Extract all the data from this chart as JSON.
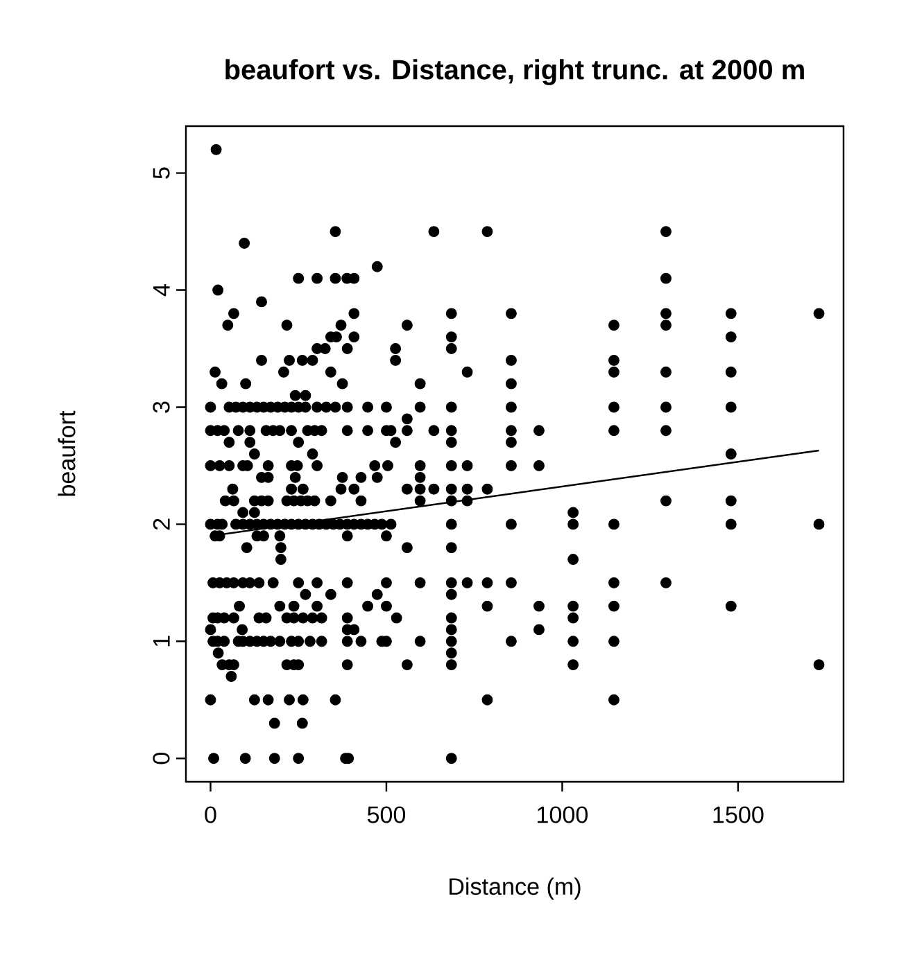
{
  "chart_data": {
    "type": "scatter",
    "title": "beaufort vs. Distance, right trunc. at 2000 m",
    "xlabel": "Distance (m)",
    "ylabel": "beaufort",
    "xlim": [
      -70,
      1800
    ],
    "ylim": [
      -0.2,
      5.4
    ],
    "xticks": [
      0,
      500,
      1000,
      1500
    ],
    "yticks": [
      0,
      1,
      2,
      3,
      4,
      5
    ],
    "marker": "circle",
    "series": [
      {
        "color": "#000000",
        "x": [
          16,
          355,
          635,
          787,
          1295,
          96,
          474,
          250,
          303,
          355,
          388,
          408,
          1295,
          21,
          145,
          66,
          408,
          685,
          855,
          1295,
          1480,
          1730,
          49,
          217,
          371,
          559,
          1147,
          1295,
          342,
          358,
          408,
          685,
          1480,
          303,
          326,
          389,
          526,
          685,
          145,
          224,
          261,
          290,
          526,
          855,
          1147,
          13,
          208,
          342,
          730,
          1147,
          1295,
          1480,
          32,
          100,
          375,
          596,
          855,
          241,
          270,
          0,
          53,
          72,
          92,
          112,
          132,
          151,
          171,
          191,
          211,
          230,
          250,
          270,
          303,
          329,
          355,
          389,
          447,
          500,
          596,
          685,
          855,
          1147,
          1295,
          1480,
          559,
          0,
          20,
          39,
          79,
          112,
          158,
          178,
          197,
          230,
          276,
          296,
          316,
          389,
          447,
          500,
          513,
          559,
          635,
          685,
          855,
          934,
          1147,
          1295,
          53,
          112,
          250,
          526,
          685,
          855,
          125,
          290,
          1480,
          0,
          26,
          53,
          92,
          105,
          164,
          230,
          247,
          303,
          467,
          504,
          596,
          685,
          730,
          855,
          934,
          145,
          164,
          241,
          375,
          428,
          474,
          596,
          63,
          230,
          263,
          371,
          408,
          559,
          596,
          635,
          685,
          730,
          787,
          42,
          66,
          125,
          145,
          164,
          217,
          237,
          257,
          276,
          296,
          342,
          428,
          596,
          685,
          730,
          1295,
          1480,
          92,
          125,
          1031,
          0,
          20,
          33,
          72,
          92,
          112,
          132,
          151,
          171,
          191,
          211,
          230,
          250,
          270,
          290,
          309,
          329,
          349,
          368,
          389,
          408,
          428,
          447,
          467,
          487,
          513,
          685,
          855,
          1031,
          1147,
          1480,
          1730,
          13,
          26,
          132,
          151,
          197,
          389,
          500,
          103,
          200,
          559,
          685,
          200,
          1031,
          7,
          26,
          46,
          66,
          92,
          112,
          138,
          178,
          250,
          303,
          389,
          500,
          596,
          685,
          730,
          787,
          855,
          1147,
          1295,
          270,
          342,
          474,
          685,
          82,
          197,
          237,
          303,
          447,
          500,
          787,
          934,
          1031,
          1147,
          1480,
          7,
          20,
          39,
          66,
          138,
          158,
          217,
          237,
          263,
          290,
          316,
          389,
          529,
          685,
          1031,
          0,
          90,
          389,
          408,
          685,
          934,
          7,
          20,
          39,
          79,
          92,
          112,
          132,
          151,
          171,
          197,
          230,
          250,
          283,
          316,
          389,
          428,
          487,
          500,
          596,
          685,
          855,
          1031,
          1147,
          22,
          685,
          33,
          53,
          66,
          217,
          237,
          250,
          389,
          559,
          685,
          1031,
          1730,
          59,
          0,
          125,
          164,
          224,
          263,
          355,
          787,
          1147,
          182,
          261,
          9,
          99,
          182,
          250,
          384,
          392,
          685
        ],
        "values": [
          5.2,
          4.5,
          4.5,
          4.5,
          4.5,
          4.4,
          4.2,
          4.1,
          4.1,
          4.1,
          4.1,
          4.1,
          4.1,
          4.0,
          3.9,
          3.8,
          3.8,
          3.8,
          3.8,
          3.8,
          3.8,
          3.8,
          3.7,
          3.7,
          3.7,
          3.7,
          3.7,
          3.7,
          3.6,
          3.6,
          3.6,
          3.6,
          3.6,
          3.5,
          3.5,
          3.5,
          3.5,
          3.5,
          3.4,
          3.4,
          3.4,
          3.4,
          3.4,
          3.4,
          3.4,
          3.3,
          3.3,
          3.3,
          3.3,
          3.3,
          3.3,
          3.3,
          3.2,
          3.2,
          3.2,
          3.2,
          3.2,
          3.1,
          3.1,
          3,
          3,
          3,
          3,
          3,
          3,
          3,
          3,
          3,
          3,
          3,
          3,
          3,
          3,
          3,
          3,
          3,
          3,
          3,
          3,
          3,
          3,
          3,
          3,
          3,
          2.9,
          2.8,
          2.8,
          2.8,
          2.8,
          2.8,
          2.8,
          2.8,
          2.8,
          2.8,
          2.8,
          2.8,
          2.8,
          2.8,
          2.8,
          2.8,
          2.8,
          2.8,
          2.8,
          2.8,
          2.8,
          2.8,
          2.8,
          2.8,
          2.7,
          2.7,
          2.7,
          2.7,
          2.7,
          2.7,
          2.6,
          2.6,
          2.6,
          2.5,
          2.5,
          2.5,
          2.5,
          2.5,
          2.5,
          2.5,
          2.5,
          2.5,
          2.5,
          2.5,
          2.5,
          2.5,
          2.5,
          2.5,
          2.5,
          2.4,
          2.4,
          2.4,
          2.4,
          2.4,
          2.4,
          2.4,
          2.3,
          2.3,
          2.3,
          2.3,
          2.3,
          2.3,
          2.3,
          2.3,
          2.3,
          2.3,
          2.3,
          2.2,
          2.2,
          2.2,
          2.2,
          2.2,
          2.2,
          2.2,
          2.2,
          2.2,
          2.2,
          2.2,
          2.2,
          2.2,
          2.2,
          2.2,
          2.2,
          2.2,
          2.1,
          2.1,
          2.1,
          2,
          2,
          2,
          2,
          2,
          2,
          2,
          2,
          2,
          2,
          2,
          2,
          2,
          2,
          2,
          2,
          2,
          2,
          2,
          2,
          2,
          2,
          2,
          2,
          2,
          2,
          2,
          2,
          2,
          2,
          2,
          2,
          1.9,
          1.9,
          1.9,
          1.9,
          1.9,
          1.9,
          1.9,
          1.8,
          1.8,
          1.8,
          1.8,
          1.7,
          1.7,
          1.5,
          1.5,
          1.5,
          1.5,
          1.5,
          1.5,
          1.5,
          1.5,
          1.5,
          1.5,
          1.5,
          1.5,
          1.5,
          1.5,
          1.5,
          1.5,
          1.5,
          1.5,
          1.5,
          1.4,
          1.4,
          1.4,
          1.4,
          1.3,
          1.3,
          1.3,
          1.3,
          1.3,
          1.3,
          1.3,
          1.3,
          1.3,
          1.3,
          1.3,
          1.2,
          1.2,
          1.2,
          1.2,
          1.2,
          1.2,
          1.2,
          1.2,
          1.2,
          1.2,
          1.2,
          1.2,
          1.2,
          1.2,
          1.2,
          1.1,
          1.1,
          1.1,
          1.1,
          1.1,
          1.1,
          1,
          1,
          1,
          1,
          1,
          1,
          1,
          1,
          1,
          1,
          1,
          1,
          1,
          1,
          1,
          1,
          1,
          1,
          1,
          1,
          1,
          1,
          1,
          0.9,
          0.9,
          0.8,
          0.8,
          0.8,
          0.8,
          0.8,
          0.8,
          0.8,
          0.8,
          0.8,
          0.8,
          0.8,
          0.7,
          0.5,
          0.5,
          0.5,
          0.5,
          0.5,
          0.5,
          0.5,
          0.5,
          0.3,
          0.3,
          0,
          0,
          0,
          0,
          0,
          0,
          0
        ]
      },
      {
        "type": "line",
        "color": "#000000",
        "marker": "none",
        "x": [
          0,
          1730
        ],
        "values": [
          1.9,
          2.63
        ]
      }
    ]
  }
}
